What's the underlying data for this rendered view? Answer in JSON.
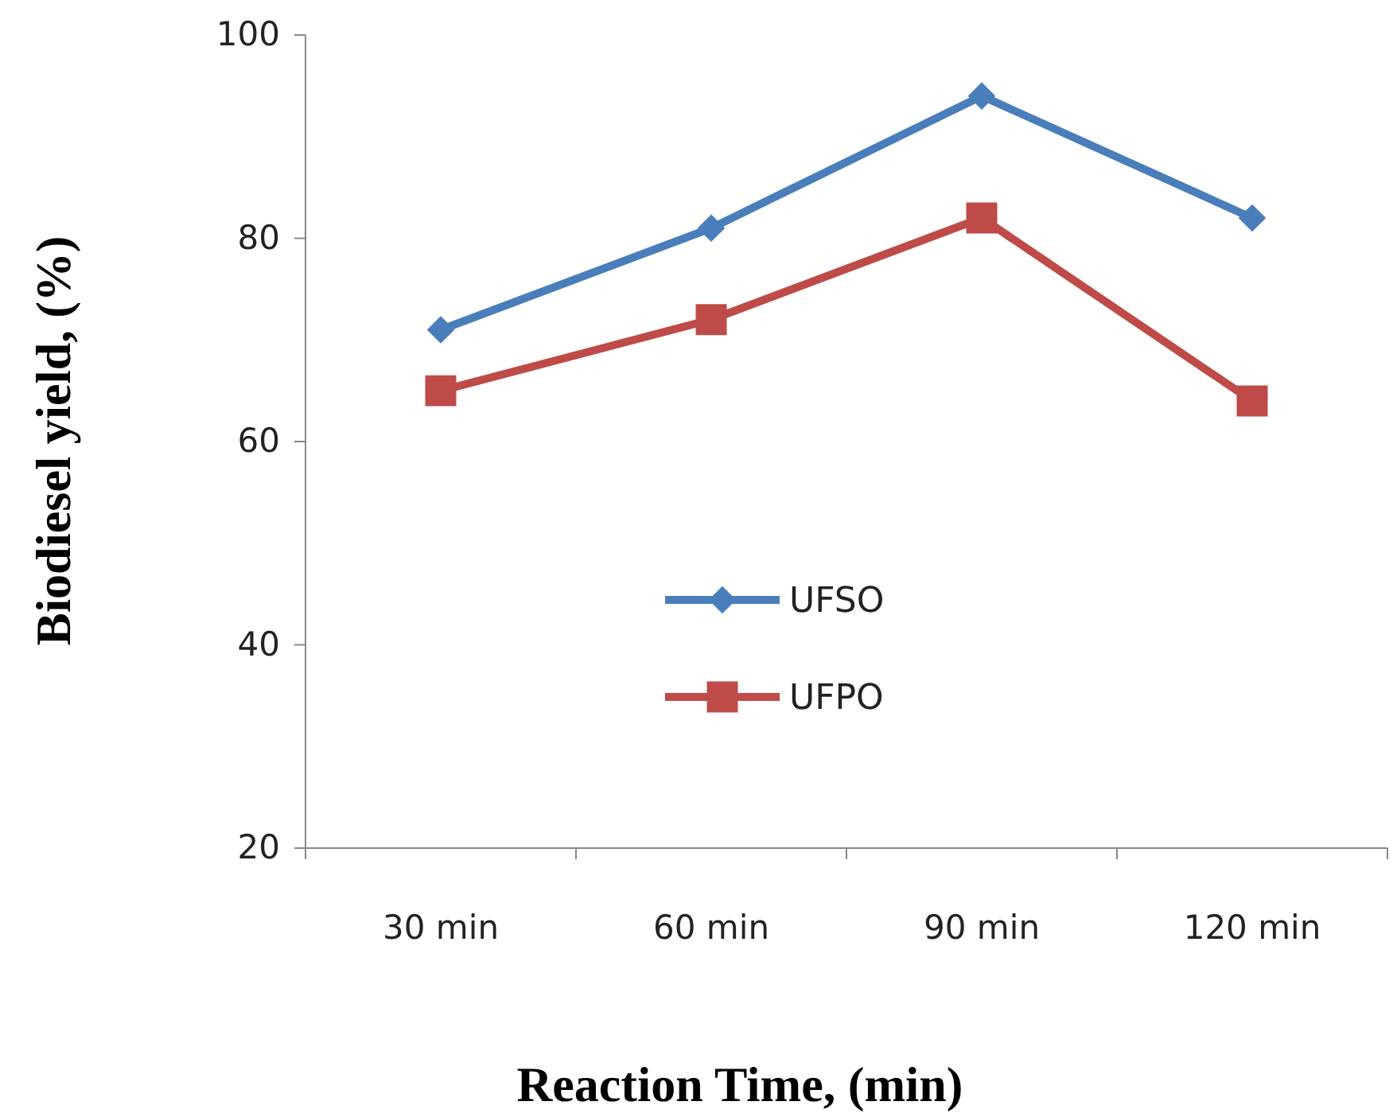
{
  "chart_data": {
    "type": "line",
    "xlabel": "Reaction Time, (min)",
    "ylabel": "Biodiesel yield, (%)",
    "categories": [
      "30 min",
      "60 min",
      "90 min",
      "120 min"
    ],
    "series": [
      {
        "name": "UFSO",
        "color": "#4a7ebb",
        "marker": "diamond",
        "values": [
          71,
          81,
          94,
          82
        ]
      },
      {
        "name": "UFPO",
        "color": "#be4b48",
        "marker": "square",
        "values": [
          65,
          72,
          82,
          64
        ]
      }
    ],
    "ylim": [
      20,
      100
    ],
    "yticks": [
      20,
      40,
      60,
      80,
      100
    ],
    "grid": false,
    "legend": "center",
    "line_style": "solid"
  }
}
